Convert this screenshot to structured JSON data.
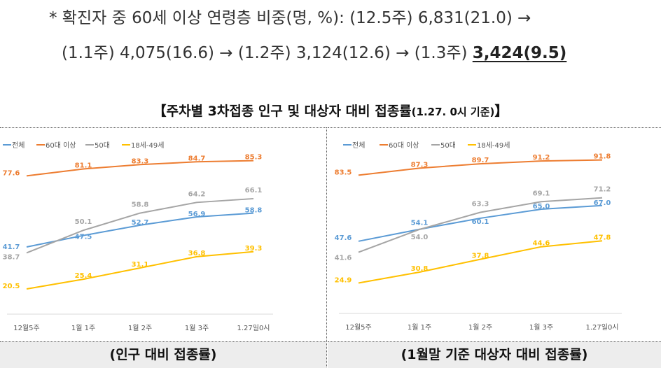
{
  "note": {
    "line1": "* 확진자 중 60세 이상 연령층 비중(명, %): (12.5주) 6,831(21.0) →",
    "line2_prefix": "(1.1주) 4,075(16.6) → (1.2주) 3,124(12.6) → (1.3주) ",
    "line2_highlight": "3,424(9.5)"
  },
  "section_title": {
    "main": "【주차별 3차접종 인구 및 대상자 대비 접종률",
    "small": "(1.27. 0시 기준)",
    "close": "】"
  },
  "colors": {
    "전체": "#5b9bd5",
    "60대 이상": "#ed7d31",
    "50대": "#a5a5a5",
    "18세-49세": "#ffc000"
  },
  "chart_data": [
    {
      "type": "line",
      "title": "",
      "caption": "(인구 대비 접종률)",
      "categories": [
        "12월5주",
        "1월 1주",
        "1월 2주",
        "1월 3주",
        "1.27일0시"
      ],
      "legend_position": "top-left",
      "grid": false,
      "ylim": [
        0,
        100
      ],
      "series": [
        {
          "name": "전체",
          "values": [
            41.7,
            47.5,
            52.7,
            56.9,
            58.8
          ]
        },
        {
          "name": "60대 이상",
          "values": [
            77.6,
            81.1,
            83.3,
            84.7,
            85.3
          ]
        },
        {
          "name": "50대",
          "values": [
            38.7,
            50.1,
            58.8,
            64.2,
            66.1
          ]
        },
        {
          "name": "18세-49세",
          "values": [
            20.5,
            25.4,
            31.1,
            36.8,
            39.3
          ]
        }
      ]
    },
    {
      "type": "line",
      "title": "",
      "caption": "(1월말 기준 대상자 대비 접종률)",
      "categories": [
        "12월5주",
        "1월 1주",
        "1월 2주",
        "1월 3주",
        "1.27일0시"
      ],
      "legend_position": "top-left",
      "grid": false,
      "ylim": [
        0,
        100
      ],
      "series": [
        {
          "name": "전체",
          "values": [
            47.6,
            54.1,
            60.1,
            65.0,
            67.0
          ]
        },
        {
          "name": "60대 이상",
          "values": [
            83.5,
            87.3,
            89.7,
            91.2,
            91.8
          ]
        },
        {
          "name": "50대",
          "values": [
            41.6,
            54.0,
            63.3,
            69.1,
            71.2
          ]
        },
        {
          "name": "18세-49세",
          "values": [
            24.9,
            30.8,
            37.8,
            44.6,
            47.8
          ]
        }
      ]
    }
  ]
}
